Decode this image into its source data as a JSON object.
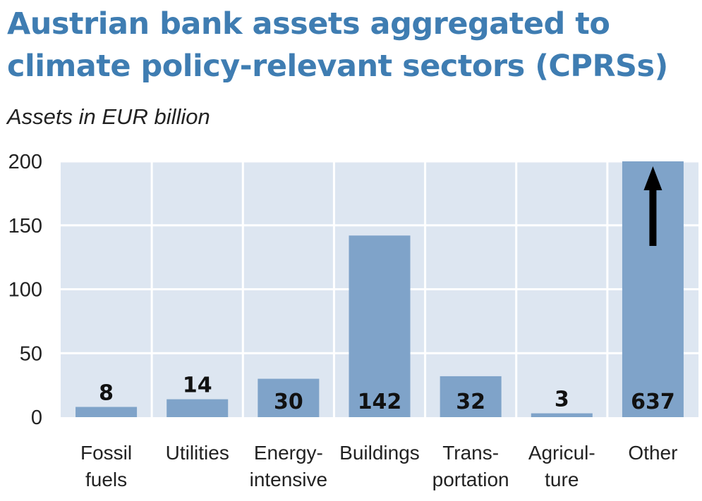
{
  "title": "Austrian bank assets aggregated to climate policy-relevant sectors (CPRSs)",
  "subtitle": "Assets in EUR billion",
  "colors": {
    "title": "#3f7db2",
    "plot_bg": "#dde6f1",
    "bar": "#7fa3c9",
    "grid": "#ffffff",
    "arrow": "#000000"
  },
  "chart_data": {
    "type": "bar",
    "title": "Austrian bank assets aggregated to climate policy-relevant sectors (CPRSs)",
    "subtitle": "Assets in EUR billion",
    "xlabel": "",
    "ylabel": "",
    "ylim": [
      0,
      200
    ],
    "yticks": [
      "0",
      "50",
      "100",
      "150",
      "200"
    ],
    "grid": true,
    "categories": [
      [
        "Fossil",
        "fuels"
      ],
      [
        "Utilities"
      ],
      [
        "Energy-",
        "intensive"
      ],
      [
        "Buildings"
      ],
      [
        "Trans-",
        "portation"
      ],
      [
        "Agricul-",
        "ture"
      ],
      [
        "Other"
      ]
    ],
    "values": [
      8,
      14,
      30,
      142,
      32,
      3,
      637
    ],
    "data_labels": [
      "8",
      "14",
      "30",
      "142",
      "32",
      "3",
      "637"
    ],
    "annotations": [
      "Other bar exceeds axis range (upward arrow)"
    ]
  }
}
